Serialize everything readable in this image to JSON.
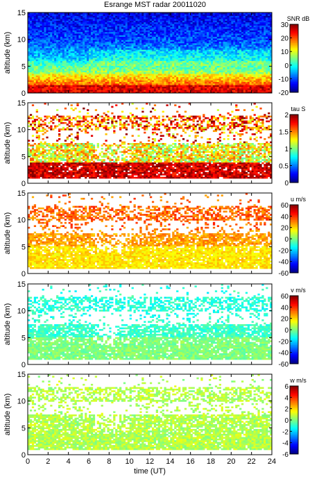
{
  "title": "Esrange MST radar 20011020",
  "chart_data": [
    {
      "type": "heatmap",
      "ylabel": "altitude (km)",
      "xlim": [
        0,
        24
      ],
      "ylim": [
        0,
        15
      ],
      "yticks": [
        "0",
        "5",
        "10",
        "15"
      ],
      "colorbar": {
        "label": "SNR dB",
        "range": [
          -20,
          30
        ],
        "ticks": [
          "30",
          "20",
          "10",
          "0",
          "-10",
          "-20"
        ]
      },
      "field": "snr"
    },
    {
      "type": "heatmap",
      "ylabel": "altitude (km)",
      "xlim": [
        0,
        24
      ],
      "ylim": [
        0,
        15
      ],
      "yticks": [
        "0",
        "5",
        "10",
        "15"
      ],
      "colorbar": {
        "label": "tau S",
        "range": [
          0,
          2
        ],
        "ticks": [
          "2",
          "1.5",
          "1",
          "0.5",
          "0"
        ]
      },
      "field": "tau"
    },
    {
      "type": "heatmap",
      "ylabel": "altitude (km)",
      "xlim": [
        0,
        24
      ],
      "ylim": [
        0,
        15
      ],
      "yticks": [
        "0",
        "5",
        "10",
        "15"
      ],
      "colorbar": {
        "label": "u m/s",
        "range": [
          -60,
          60
        ],
        "ticks": [
          "60",
          "40",
          "20",
          "0",
          "-20",
          "-40",
          "-60"
        ]
      },
      "field": "u"
    },
    {
      "type": "heatmap",
      "ylabel": "altitude (km)",
      "xlim": [
        0,
        24
      ],
      "ylim": [
        0,
        15
      ],
      "yticks": [
        "0",
        "5",
        "10",
        "15"
      ],
      "colorbar": {
        "label": "v m/s",
        "range": [
          -60,
          60
        ],
        "ticks": [
          "60",
          "40",
          "20",
          "0",
          "-20",
          "-40",
          "-60"
        ]
      },
      "field": "v"
    },
    {
      "type": "heatmap",
      "ylabel": "altitude (km)",
      "xlabel": "time (UT)",
      "xlim": [
        0,
        24
      ],
      "ylim": [
        0,
        15
      ],
      "yticks": [
        "0",
        "5",
        "10",
        "15"
      ],
      "xticks": [
        "0",
        "2",
        "4",
        "6",
        "8",
        "10",
        "12",
        "14",
        "16",
        "18",
        "20",
        "22",
        "24"
      ],
      "colorbar": {
        "label": "w m/s",
        "range": [
          -6,
          6
        ],
        "ticks": [
          "6",
          "4",
          "2",
          "0",
          "-2",
          "-4",
          "-6"
        ]
      },
      "field": "w"
    }
  ]
}
